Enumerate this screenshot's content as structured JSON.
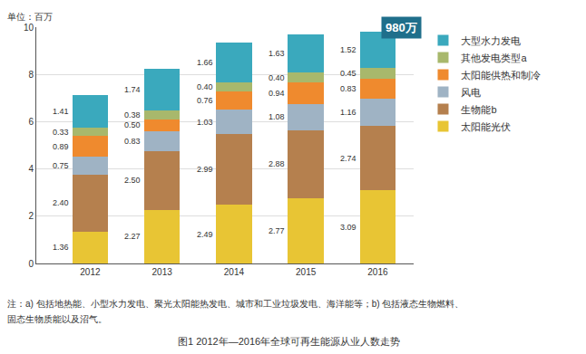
{
  "chart_data": {
    "type": "bar",
    "stacked": true,
    "title": "图1 2012年—2016年全球可再生能源从业人数走势",
    "ylabel": "单位：百万",
    "notes": [
      "注：a) 包括地热能、小型水力发电、聚光太阳能热发电、城市和工业垃圾发电、海洋能等；b) 包括液态生物燃料、",
      "固态生物质能以及沼气。"
    ],
    "annotations": [
      {
        "text": "980万"
      }
    ],
    "categories": [
      "2012",
      "2013",
      "2014",
      "2015",
      "2016"
    ],
    "ylim": [
      0,
      10
    ],
    "yticks": [
      0,
      2,
      4,
      6,
      8,
      10
    ],
    "grid": true,
    "legend": "right",
    "data_labels": true,
    "series": [
      {
        "name": "太阳能光伏",
        "color": "#e8c534",
        "values": [
          1.36,
          2.27,
          2.49,
          2.77,
          3.09
        ],
        "value_labels": [
          "1.36",
          "2.27",
          "2.49",
          "2.77",
          "3.09"
        ]
      },
      {
        "name": "生物能b",
        "color": "#b5804e",
        "values": [
          2.4,
          2.5,
          2.99,
          2.88,
          2.74
        ],
        "value_labels": [
          "2.40",
          "2.50",
          "2.99",
          "2.88",
          "2.74"
        ]
      },
      {
        "name": "风电",
        "color": "#9fb3c4",
        "values": [
          0.75,
          0.83,
          1.03,
          1.08,
          1.16
        ],
        "value_labels": [
          "0.75",
          "0.83",
          "1.03",
          "1.08",
          "1.16"
        ]
      },
      {
        "name": "太阳能供热和制冷",
        "color": "#ef8a2e",
        "values": [
          0.89,
          0.5,
          0.76,
          0.94,
          0.83
        ],
        "value_labels": [
          "0.89",
          "0.50",
          "0.76",
          "0.94",
          "0.83"
        ]
      },
      {
        "name": "其他发电类型a",
        "color": "#a8b86c",
        "values": [
          0.33,
          0.38,
          0.4,
          0.4,
          0.45
        ],
        "value_labels": [
          "0.33",
          "0.38",
          "0.40",
          "0.40",
          "0.45"
        ]
      },
      {
        "name": "大型水力发电",
        "color": "#3aa9bd",
        "values": [
          1.41,
          1.74,
          1.66,
          1.63,
          1.52
        ],
        "value_labels": [
          "1.41",
          "1.74",
          "1.66",
          "1.63",
          "1.52"
        ]
      }
    ]
  }
}
